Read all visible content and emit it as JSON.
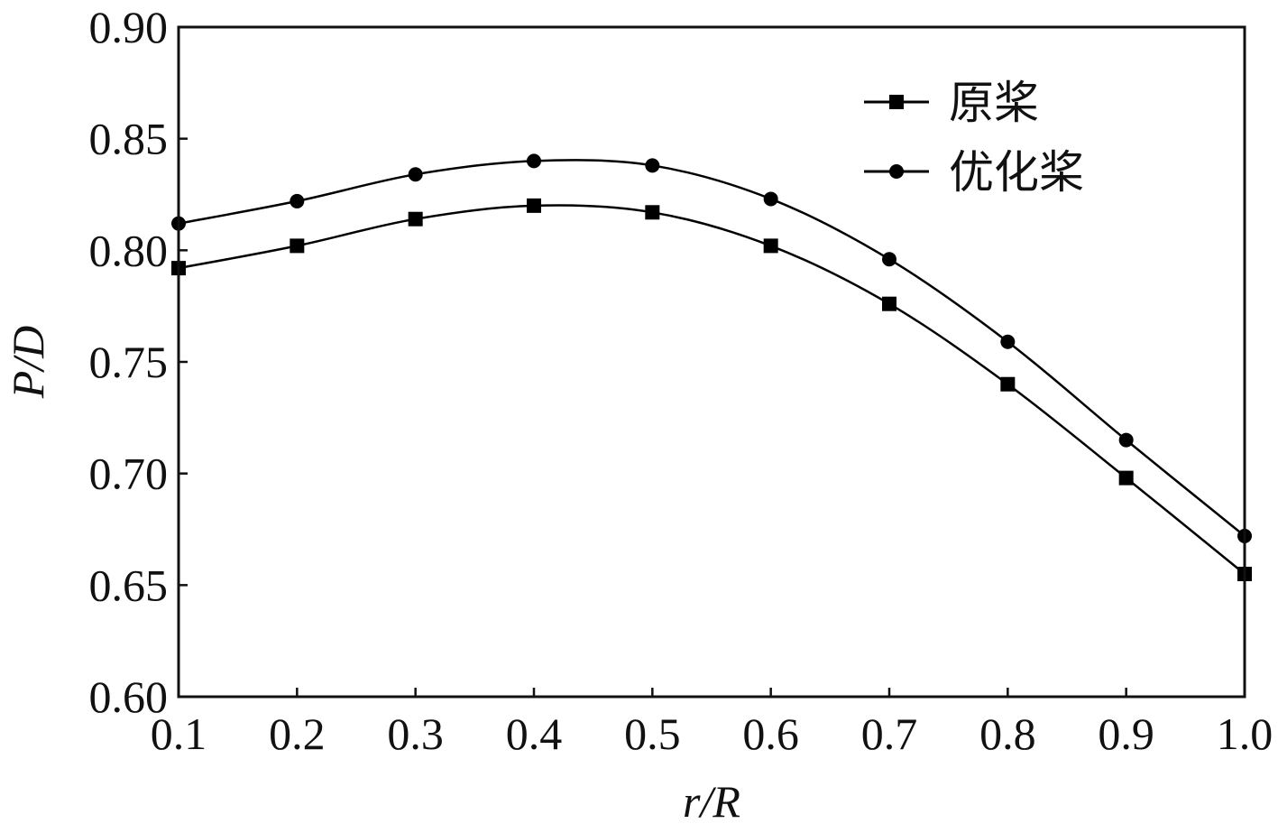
{
  "chart_data": {
    "type": "line",
    "title": "",
    "xlabel": "r/R",
    "ylabel": "P/D",
    "xlim": [
      0.1,
      1.0
    ],
    "ylim": [
      0.6,
      0.9
    ],
    "x": [
      0.1,
      0.2,
      0.3,
      0.4,
      0.5,
      0.6,
      0.7,
      0.8,
      0.9,
      1.0
    ],
    "x_tick_labels": [
      "0.1",
      "0.2",
      "0.3",
      "0.4",
      "0.5",
      "0.6",
      "0.7",
      "0.8",
      "0.9",
      "1.0"
    ],
    "y_ticks": [
      0.6,
      0.65,
      0.7,
      0.75,
      0.8,
      0.85,
      0.9
    ],
    "y_tick_labels": [
      "0.60",
      "0.65",
      "0.70",
      "0.75",
      "0.80",
      "0.85",
      "0.90"
    ],
    "grid": false,
    "legend_position": "top-right",
    "series": [
      {
        "name": "原桨",
        "marker": "square",
        "color": "#000000",
        "values": [
          0.792,
          0.802,
          0.814,
          0.82,
          0.817,
          0.802,
          0.776,
          0.74,
          0.698,
          0.655
        ]
      },
      {
        "name": "优化桨",
        "marker": "circle",
        "color": "#000000",
        "values": [
          0.812,
          0.822,
          0.834,
          0.84,
          0.838,
          0.823,
          0.796,
          0.759,
          0.715,
          0.672
        ]
      }
    ]
  }
}
